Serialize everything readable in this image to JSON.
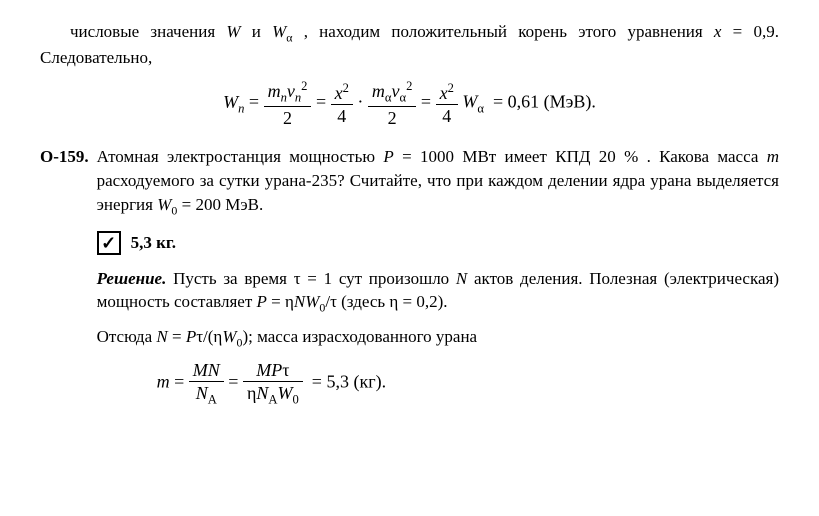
{
  "intro_text": "числовые значения W и Wα , находим положительный корень этого уравнения x = 0,9. Следовательно,",
  "formula1": {
    "lhs": "Wn",
    "frac1_num": "mnvn²",
    "frac1_den": "2",
    "frac2_num": "x²",
    "frac2_den": "4",
    "frac3_num": "mαvα²",
    "frac3_den": "2",
    "frac4_num": "x²",
    "frac4_den": "4",
    "Walpha": "Wα",
    "result": "= 0,61 (МэВ)."
  },
  "problem": {
    "label": "О-159.",
    "text_line1": "Атомная электростанция мощностью P = 1000 МВт имеет КПД 20 % . Какова масса m расходуемого за сутки урана-235? Считайте, что при каждом делении ядра урана выделяется энергия W₀ = 200 МэВ."
  },
  "answer": "5,3 кг.",
  "solution": {
    "label": "Решение.",
    "text1": " Пусть за время τ = 1 сут произошло N актов деления. Полезная (электрическая) мощность составляет P = ηNW₀/τ (здесь η = 0,2).",
    "text2": "Отсюда N = Pτ/(ηW₀); масса израсходованного урана",
    "formula": {
      "lhs": "m =",
      "frac1_num": "MN",
      "frac1_den": "NA",
      "frac2_num": "MPτ",
      "frac2_den": "ηNAW₀",
      "result": "= 5,3 (кг)."
    }
  },
  "colors": {
    "text": "#000000",
    "bg": "#ffffff"
  },
  "fonts": {
    "body_size": 17,
    "formula_size": 18,
    "family": "Times New Roman"
  }
}
